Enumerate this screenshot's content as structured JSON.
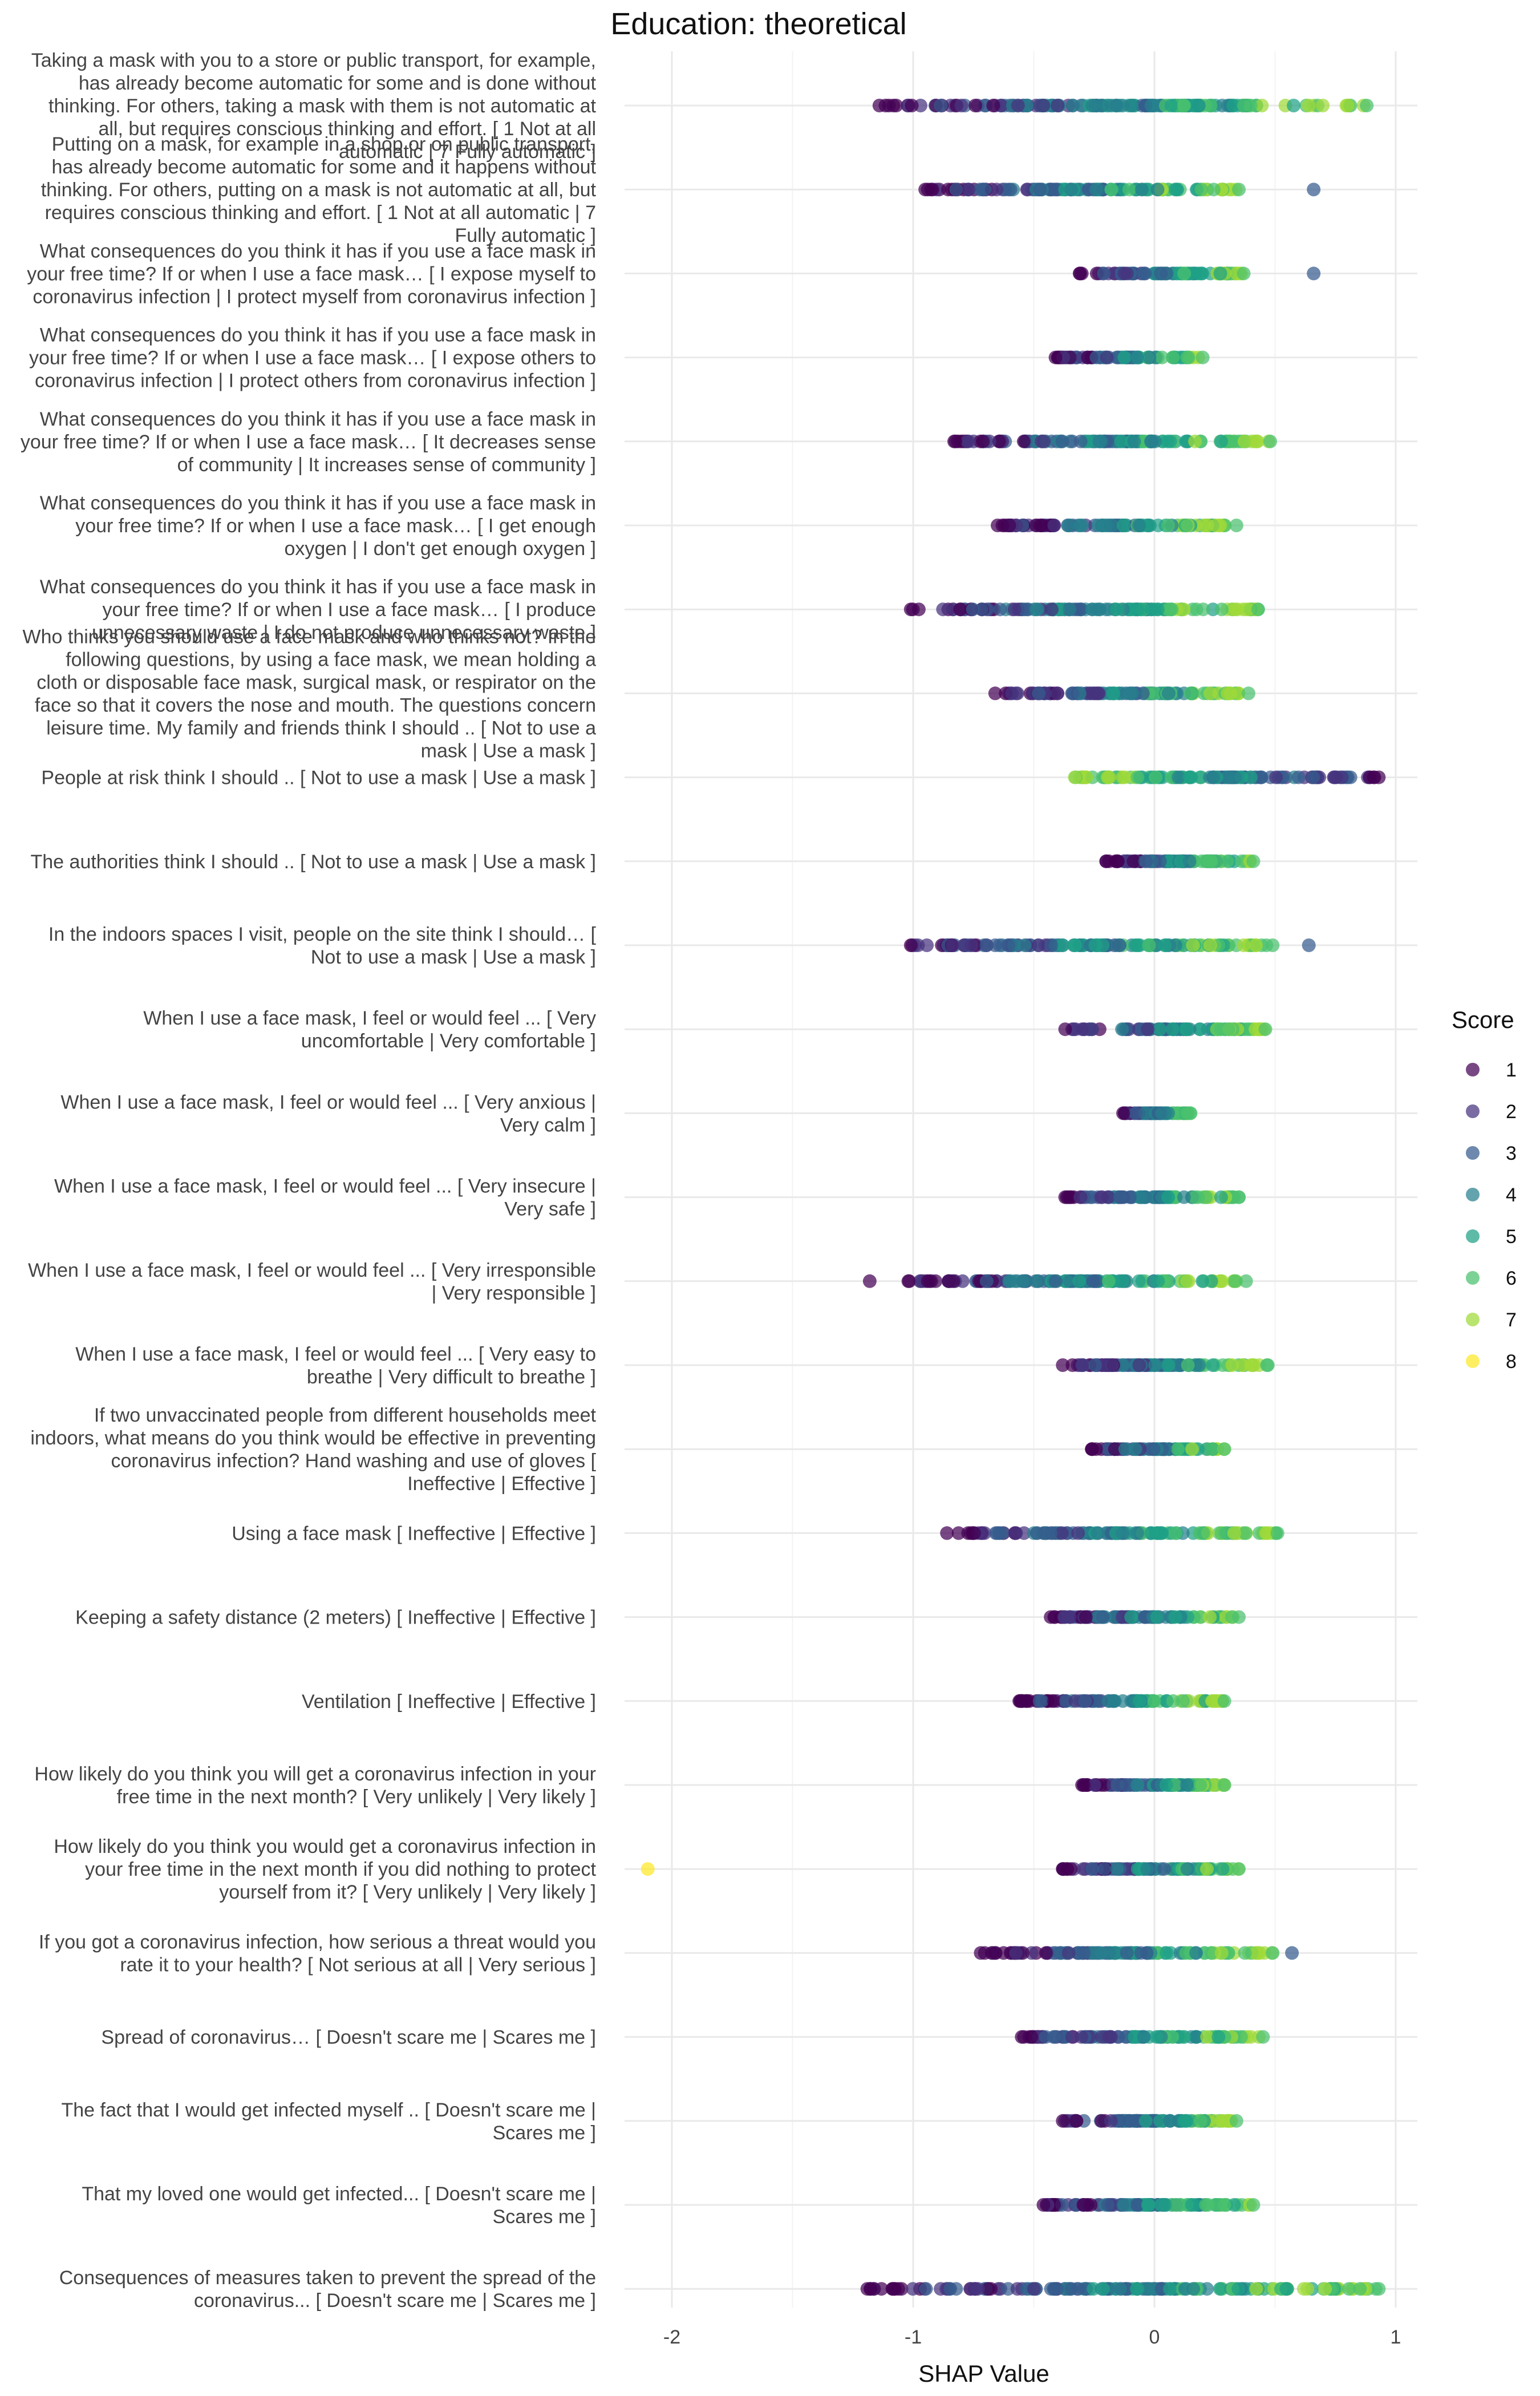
{
  "chart_data": {
    "type": "scatter",
    "title": "Education: theoretical",
    "xlabel": "SHAP Value",
    "xlim": [
      -2.1,
      1.1
    ],
    "x_ticks": [
      -2,
      -1,
      0,
      1
    ],
    "grid": true,
    "legend": {
      "title": "Score",
      "position": "right",
      "entries": [
        "1",
        "2",
        "3",
        "4",
        "5",
        "6",
        "7",
        "8"
      ]
    },
    "score_colors": {
      "1": "#440154",
      "2": "#46337e",
      "3": "#365c8d",
      "4": "#277f8e",
      "5": "#1fa187",
      "6": "#4ac16d",
      "7": "#a0da39",
      "8": "#fde725"
    },
    "features": [
      {
        "label": "Taking a mask with you to a store or public transport, for example, has already become automatic for some and is done without thinking. For others, taking a mask with them is not automatic at all, but requires conscious thinking and effort. [ 1 Not at all automatic | 7 Fully automatic ]",
        "min": -1.14,
        "max": 0.88,
        "outliers": []
      },
      {
        "label": "Putting on a mask, for example in a shop or on public transport, has already become automatic for some and it happens without thinking. For others, putting on a mask is not automatic at all, but requires conscious thinking and effort. [ 1 Not at all automatic | 7 Fully automatic ]",
        "min": -0.95,
        "max": 0.35,
        "outliers": [
          0.66
        ]
      },
      {
        "label": "What consequences do you think it has if you use a face mask in your free time? If or when I use a face mask… [ I expose myself to coronavirus infection | I protect myself from coronavirus infection ]",
        "min": -0.31,
        "max": 0.37,
        "outliers": [
          0.66
        ]
      },
      {
        "label": "What consequences do you think it has if you use a face mask in your free time? If or when I use a face mask… [ I expose others to coronavirus infection | I protect others from coronavirus infection ]",
        "min": -0.41,
        "max": 0.2,
        "outliers": []
      },
      {
        "label": "What consequences do you think it has if you use a face mask in your free time? If or when I use a face mask… [ It decreases sense of community | It increases sense of community ]",
        "min": -0.83,
        "max": 0.48,
        "outliers": []
      },
      {
        "label": "What consequences do you think it has if you use a face mask in your free time? If or when I use a face mask… [ I get enough oxygen | I don't get enough oxygen ]",
        "min": -0.65,
        "max": 0.34,
        "outliers": []
      },
      {
        "label": "What consequences do you think it has if you use a face mask in your free time? If or when I use a face mask… [ I produce unnecessary waste | I do not produce unnecessary waste ]",
        "min": -1.01,
        "max": 0.43,
        "outliers": []
      },
      {
        "label": "Who thinks you should use a face mask and who thinks not? In the following questions, by using a face mask, we mean holding a cloth or disposable face mask, surgical mask, or respirator on the face so that it covers the nose and mouth. The questions concern leisure time. My family and friends think I should .. [ Not to use a mask | Use a mask ]",
        "min": -0.66,
        "max": 0.39,
        "outliers": []
      },
      {
        "label": "People at risk think I should .. [ Not to use a mask | Use a mask ]",
        "min": -0.33,
        "max": 0.93,
        "outliers": []
      },
      {
        "label": "The authorities think I should .. [ Not to use a mask | Use a mask ]",
        "min": -0.2,
        "max": 0.41,
        "outliers": []
      },
      {
        "label": "In the indoors spaces I visit, people on the site think I should… [ Not to use a mask | Use a mask ]",
        "min": -1.01,
        "max": 0.49,
        "outliers": [
          0.64
        ]
      },
      {
        "label": "When I use a face mask, I feel or would feel ... [ Very uncomfortable | Very comfortable ]",
        "min": -0.37,
        "max": 0.46,
        "outliers": []
      },
      {
        "label": "When I use a face mask, I feel or would feel ... [ Very anxious | Very calm ]",
        "min": -0.13,
        "max": 0.15,
        "outliers": []
      },
      {
        "label": "When I use a face mask, I feel or would feel ... [ Very insecure | Very safe ]",
        "min": -0.37,
        "max": 0.35,
        "outliers": []
      },
      {
        "label": "When I use a face mask, I feel or would feel ... [ Very irresponsible | Very responsible ]",
        "min": -1.02,
        "max": 0.38,
        "outliers": [
          -1.18
        ]
      },
      {
        "label": "When I use a face mask, I feel or would feel ... [ Very easy to breathe | Very difficult to breathe ]",
        "min": -0.38,
        "max": 0.47,
        "outliers": []
      },
      {
        "label": "If two unvaccinated people from different households meet indoors, what means do you think would be effective in preventing coronavirus infection? Hand washing and use of gloves [ Ineffective | Effective ]",
        "min": -0.26,
        "max": 0.29,
        "outliers": []
      },
      {
        "label": "Using a face mask [ Ineffective | Effective ]",
        "min": -0.86,
        "max": 0.51,
        "outliers": []
      },
      {
        "label": "Keeping a safety distance (2 meters) [ Ineffective | Effective ]",
        "min": -0.43,
        "max": 0.35,
        "outliers": []
      },
      {
        "label": "Ventilation [ Ineffective | Effective ]",
        "min": -0.56,
        "max": 0.29,
        "outliers": []
      },
      {
        "label": "How likely do you think you will get a coronavirus infection in your free time in the next month? [ Very unlikely | Very likely ]",
        "min": -0.3,
        "max": 0.29,
        "outliers": []
      },
      {
        "label": "How likely do you think you would get a coronavirus infection in your free time in the next month if you did nothing to protect yourself from it? [ Very unlikely | Very likely ]",
        "min": -0.38,
        "max": 0.35,
        "outliers": [
          -2.1
        ]
      },
      {
        "label": "If you got a coronavirus infection, how serious a threat would you rate it to your health? [ Not serious at all | Very serious ]",
        "min": -0.72,
        "max": 0.49,
        "outliers": [
          0.57
        ]
      },
      {
        "label": "Spread of coronavirus… [ Doesn't scare me | Scares me ]",
        "min": -0.55,
        "max": 0.45,
        "outliers": []
      },
      {
        "label": "The fact that I would get infected myself .. [ Doesn't scare me | Scares me ]",
        "min": -0.38,
        "max": 0.34,
        "outliers": []
      },
      {
        "label": "That my loved one would get infected... [ Doesn't scare me | Scares me ]",
        "min": -0.46,
        "max": 0.41,
        "outliers": []
      },
      {
        "label": "Consequences of measures taken to prevent the spread of the coronavirus... [ Doesn't scare me | Scares me ]",
        "min": -1.19,
        "max": 0.93,
        "outliers": []
      }
    ]
  }
}
